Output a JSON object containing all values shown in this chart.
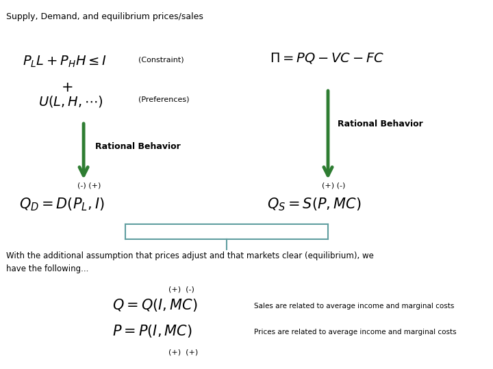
{
  "title": "Supply, Demand, and equilibrium prices/sales",
  "bg_color": "#ffffff",
  "arrow_color": "#2e7d32",
  "bracket_color": "#5f9ea0",
  "text_color": "#000000",
  "title_fontsize": 9,
  "math_fontsize": 13,
  "small_fontsize": 8,
  "label_fontsize": 9,
  "constraint_text": "(Constraint)",
  "preferences_text": "(Preferences)",
  "rational_behavior": "Rational Behavior",
  "with_text": "With the additional assumption that prices adjust and that markets clear (equilibrium), we\nhave the following...",
  "sales_note": "Sales are related to average income and marginal costs",
  "prices_note": "Prices are related to average income and marginal costs",
  "left_signs1": "(-) (+)",
  "right_signs1": "(+) (-)",
  "bottom_signs_q": "(+)  (-)",
  "bottom_signs_p": "(+)  (+)"
}
